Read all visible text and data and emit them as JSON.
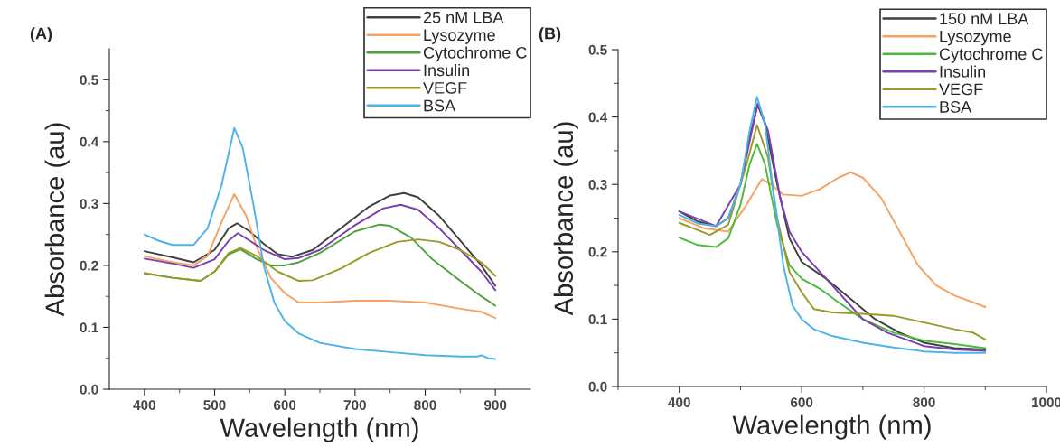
{
  "chart_data": [
    {
      "type": "line",
      "xlabel": "Wavelength (nm)",
      "ylabel": "Absorbance (au)",
      "annotations": [
        "(A)"
      ],
      "legend": "top right",
      "grid": false,
      "xlim": [
        350,
        950
      ],
      "xticks": [
        400,
        {
          "value": 450,
          "label": null
        },
        500,
        {
          "value": 550,
          "label": null
        },
        600,
        {
          "value": 650,
          "label": null
        },
        700,
        {
          "value": 750,
          "label": null
        },
        800,
        {
          "value": 850,
          "label": null
        },
        900
      ],
      "ylim": [
        0,
        0.55
      ],
      "yticks": [
        {
          "value": 0,
          "label": "0.0"
        },
        {
          "value": 0.05,
          "label": null
        },
        0.1,
        {
          "value": 0.15,
          "label": null
        },
        0.2,
        {
          "value": 0.25,
          "label": null
        },
        0.3,
        {
          "value": 0.35,
          "label": null
        },
        0.4,
        {
          "value": 0.45,
          "label": null
        },
        0.5
      ],
      "series": [
        {
          "name": "25 nM LBA",
          "color": "#404040",
          "x": [
            400,
            440,
            470,
            500,
            520,
            532,
            550,
            570,
            590,
            610,
            640,
            680,
            720,
            750,
            770,
            790,
            820,
            850,
            880,
            900
          ],
          "values": [
            0.223,
            0.213,
            0.205,
            0.225,
            0.26,
            0.268,
            0.255,
            0.235,
            0.218,
            0.214,
            0.225,
            0.26,
            0.295,
            0.313,
            0.317,
            0.31,
            0.28,
            0.24,
            0.2,
            0.167
          ]
        },
        {
          "name": "Lysozyme",
          "color": "#f5a263",
          "x": [
            400,
            440,
            470,
            490,
            510,
            528,
            545,
            560,
            580,
            600,
            620,
            650,
            700,
            750,
            800,
            850,
            880,
            900
          ],
          "values": [
            0.215,
            0.205,
            0.2,
            0.215,
            0.27,
            0.315,
            0.28,
            0.23,
            0.18,
            0.155,
            0.14,
            0.14,
            0.143,
            0.143,
            0.14,
            0.13,
            0.125,
            0.115
          ]
        },
        {
          "name": "Cytochrome C",
          "color": "#4ea23c",
          "x": [
            400,
            440,
            480,
            500,
            520,
            537,
            560,
            580,
            600,
            620,
            650,
            700,
            735,
            750,
            780,
            810,
            850,
            880,
            900
          ],
          "values": [
            0.187,
            0.18,
            0.175,
            0.19,
            0.218,
            0.226,
            0.21,
            0.2,
            0.2,
            0.205,
            0.22,
            0.255,
            0.266,
            0.264,
            0.245,
            0.21,
            0.175,
            0.15,
            0.135
          ]
        },
        {
          "name": "Insulin",
          "color": "#7a3fb0",
          "x": [
            400,
            440,
            470,
            500,
            520,
            533,
            550,
            570,
            600,
            620,
            650,
            700,
            740,
            765,
            790,
            820,
            850,
            880,
            900
          ],
          "values": [
            0.211,
            0.203,
            0.196,
            0.21,
            0.24,
            0.252,
            0.24,
            0.225,
            0.21,
            0.212,
            0.225,
            0.265,
            0.292,
            0.298,
            0.29,
            0.26,
            0.225,
            0.19,
            0.16
          ]
        },
        {
          "name": "VEGF",
          "color": "#9a9a2a",
          "x": [
            400,
            440,
            480,
            500,
            520,
            537,
            560,
            590,
            620,
            640,
            680,
            720,
            760,
            790,
            820,
            850,
            880,
            900
          ],
          "values": [
            0.188,
            0.18,
            0.175,
            0.19,
            0.22,
            0.228,
            0.215,
            0.19,
            0.175,
            0.176,
            0.195,
            0.22,
            0.238,
            0.242,
            0.238,
            0.225,
            0.205,
            0.183
          ]
        },
        {
          "name": "BSA",
          "color": "#4db4e8",
          "x": [
            400,
            420,
            440,
            470,
            490,
            510,
            528,
            540,
            555,
            570,
            585,
            600,
            620,
            650,
            700,
            750,
            800,
            850,
            875,
            880,
            890,
            900
          ],
          "values": [
            0.25,
            0.24,
            0.233,
            0.233,
            0.26,
            0.33,
            0.422,
            0.39,
            0.3,
            0.2,
            0.14,
            0.11,
            0.09,
            0.075,
            0.065,
            0.06,
            0.055,
            0.053,
            0.053,
            0.055,
            0.05,
            0.049
          ]
        }
      ]
    },
    {
      "type": "line",
      "xlabel": "Wavelength (nm)",
      "ylabel": "Absorbance (au)",
      "annotations": [
        "(B)"
      ],
      "legend": "top right",
      "grid": false,
      "xlim": [
        300,
        1000
      ],
      "xticks": [
        {
          "value": 300,
          "label": null
        },
        400,
        {
          "value": 500,
          "label": null
        },
        600,
        {
          "value": 700,
          "label": null
        },
        800,
        {
          "value": 900,
          "label": null
        },
        1000
      ],
      "ylim": [
        0,
        0.5
      ],
      "yticks": [
        {
          "value": 0,
          "label": "0.0"
        },
        {
          "value": 0.05,
          "label": null
        },
        0.1,
        {
          "value": 0.15,
          "label": null
        },
        0.2,
        {
          "value": 0.25,
          "label": null
        },
        0.3,
        {
          "value": 0.35,
          "label": null
        },
        0.4,
        {
          "value": 0.45,
          "label": null
        },
        0.5
      ],
      "series": [
        {
          "name": "150 nM LBA",
          "color": "#404040",
          "x": [
            400,
            430,
            460,
            480,
            500,
            515,
            528,
            540,
            560,
            580,
            600,
            640,
            680,
            720,
            760,
            800,
            850,
            900
          ],
          "values": [
            0.26,
            0.245,
            0.238,
            0.25,
            0.3,
            0.37,
            0.418,
            0.39,
            0.3,
            0.22,
            0.185,
            0.16,
            0.13,
            0.1,
            0.08,
            0.065,
            0.057,
            0.055
          ]
        },
        {
          "name": "Lysozyme",
          "color": "#f5a263",
          "x": [
            400,
            440,
            480,
            510,
            535,
            550,
            570,
            600,
            630,
            660,
            680,
            700,
            730,
            760,
            790,
            820,
            850,
            880,
            900
          ],
          "values": [
            0.25,
            0.235,
            0.23,
            0.27,
            0.308,
            0.3,
            0.285,
            0.283,
            0.293,
            0.31,
            0.318,
            0.31,
            0.28,
            0.23,
            0.18,
            0.15,
            0.135,
            0.125,
            0.118
          ]
        },
        {
          "name": "Cytochrome C",
          "color": "#4cbb3c",
          "x": [
            400,
            430,
            460,
            480,
            500,
            515,
            527,
            540,
            560,
            580,
            600,
            630,
            660,
            700,
            750,
            800,
            850,
            900
          ],
          "values": [
            0.221,
            0.21,
            0.207,
            0.22,
            0.27,
            0.33,
            0.36,
            0.33,
            0.24,
            0.18,
            0.16,
            0.145,
            0.125,
            0.1,
            0.08,
            0.068,
            0.063,
            0.057
          ]
        },
        {
          "name": "Insulin",
          "color": "#7a3fb0",
          "x": [
            400,
            460,
            500,
            528,
            545,
            565,
            580,
            600,
            640,
            680,
            700,
            740,
            800,
            850,
            900
          ],
          "values": [
            0.26,
            0.238,
            0.3,
            0.42,
            0.38,
            0.28,
            0.23,
            0.2,
            0.16,
            0.12,
            0.1,
            0.08,
            0.06,
            0.055,
            0.053
          ]
        },
        {
          "name": "VEGF",
          "color": "#9a9a2a",
          "x": [
            400,
            450,
            480,
            510,
            527,
            545,
            560,
            580,
            600,
            620,
            650,
            700,
            750,
            800,
            850,
            880,
            900
          ],
          "values": [
            0.243,
            0.225,
            0.24,
            0.33,
            0.388,
            0.34,
            0.25,
            0.17,
            0.14,
            0.115,
            0.11,
            0.108,
            0.105,
            0.095,
            0.085,
            0.08,
            0.07
          ]
        },
        {
          "name": "BSA",
          "color": "#4db4e8",
          "x": [
            400,
            430,
            460,
            480,
            500,
            515,
            527,
            540,
            555,
            570,
            585,
            600,
            620,
            650,
            700,
            750,
            800,
            850,
            900
          ],
          "values": [
            0.255,
            0.242,
            0.238,
            0.25,
            0.3,
            0.38,
            0.43,
            0.39,
            0.28,
            0.18,
            0.12,
            0.1,
            0.085,
            0.075,
            0.065,
            0.058,
            0.052,
            0.05,
            0.05
          ]
        }
      ]
    }
  ]
}
